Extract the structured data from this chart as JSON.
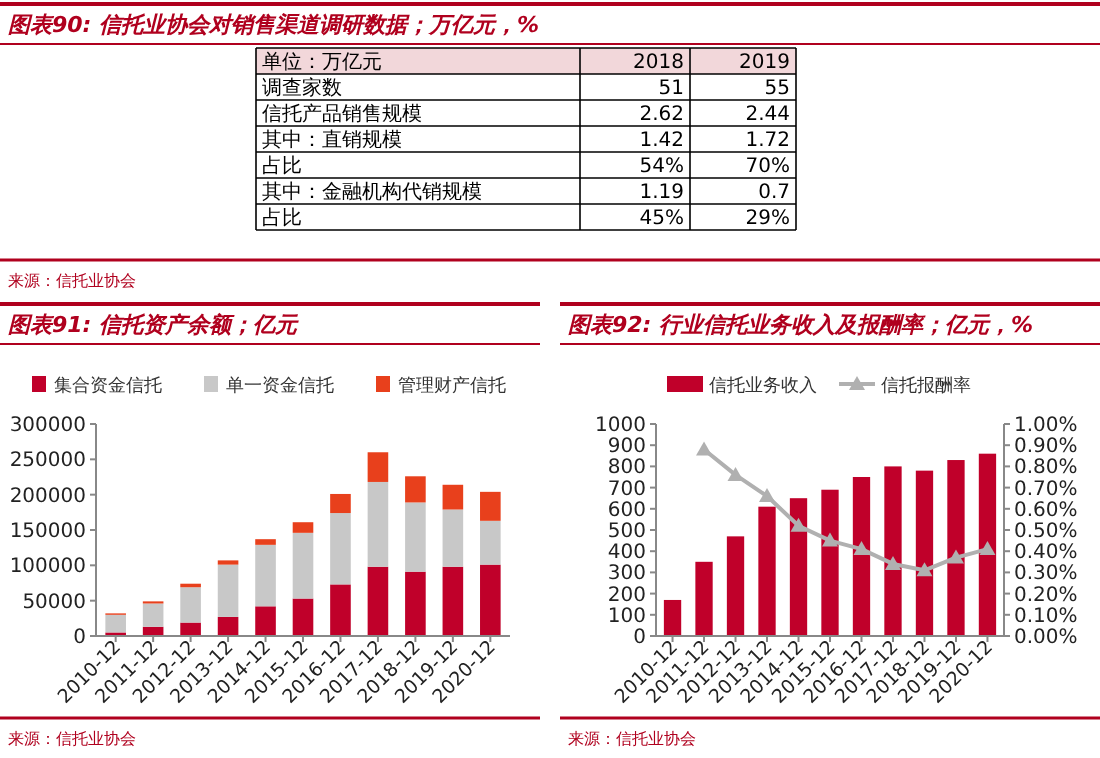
{
  "chart_data": [
    {
      "type": "other",
      "title": "图表90: 信托业协会对销售渠道调研数据；万亿元，%",
      "ylabel": "单位：万亿元",
      "categories": [
        "2018",
        "2019"
      ],
      "y_categories": [
        "调查家数",
        "信托产品销售规模",
        "其中：直销规模",
        "占比",
        "其中：金融机构代销规模",
        "占比"
      ],
      "cell_labels": [
        [
          "51",
          "55"
        ],
        [
          "2.62",
          "2.44"
        ],
        [
          "1.42",
          "1.72"
        ],
        [
          "54%",
          "70%"
        ],
        [
          "1.19",
          "0.7"
        ],
        [
          "45%",
          "29%"
        ]
      ],
      "annotations": [
        "来源：信托业协会"
      ]
    },
    {
      "type": "bar",
      "stacked": true,
      "title": "图表91: 信托资产余额；亿元",
      "legend": "top",
      "categories": [
        "2010-12",
        "2011-12",
        "2012-12",
        "2013-12",
        "2014-12",
        "2015-12",
        "2016-12",
        "2017-12",
        "2018-12",
        "2019-12",
        "2020-12"
      ],
      "ylim": [
        0,
        300000
      ],
      "yticks": [
        0,
        50000,
        100000,
        150000,
        200000,
        250000,
        300000
      ],
      "series": [
        {
          "name": "集合资金信托",
          "color": "#c0002a",
          "values": [
            5000,
            13000,
            19000,
            27000,
            42000,
            53000,
            73000,
            98000,
            91000,
            98000,
            101000
          ]
        },
        {
          "name": "单一资金信托",
          "color": "#c8c8c8",
          "values": [
            25000,
            33000,
            50000,
            74000,
            87000,
            93000,
            101000,
            120000,
            98000,
            81000,
            62000
          ]
        },
        {
          "name": "管理财产信托",
          "color": "#e8401c",
          "values": [
            2000,
            3000,
            5000,
            6000,
            8000,
            15000,
            27000,
            42000,
            37000,
            35000,
            41000
          ]
        }
      ],
      "annotations": [
        "来源：信托业协会"
      ]
    },
    {
      "type": "bar",
      "title": "图表92: 行业信托业务收入及报酬率；亿元，%",
      "legend": "top",
      "categories": [
        "2010-12",
        "2011-12",
        "2012-12",
        "2013-12",
        "2014-12",
        "2015-12",
        "2016-12",
        "2017-12",
        "2018-12",
        "2019-12",
        "2020-12"
      ],
      "ylim": [
        0,
        1000
      ],
      "yticks": [
        0,
        100,
        200,
        300,
        400,
        500,
        600,
        700,
        800,
        900,
        1000
      ],
      "y2lim": [
        0,
        1
      ],
      "y2ticks": [
        {
          "value": 0,
          "label": "0.00%"
        },
        {
          "value": 0.1,
          "label": "0.10%"
        },
        {
          "value": 0.2,
          "label": "0.20%"
        },
        {
          "value": 0.3,
          "label": "0.30%"
        },
        {
          "value": 0.4,
          "label": "0.40%"
        },
        {
          "value": 0.5,
          "label": "0.50%"
        },
        {
          "value": 0.6,
          "label": "0.60%"
        },
        {
          "value": 0.7,
          "label": "0.70%"
        },
        {
          "value": 0.8,
          "label": "0.80%"
        },
        {
          "value": 0.9,
          "label": "0.90%"
        },
        {
          "value": 1,
          "label": "1.00%"
        }
      ],
      "series": [
        {
          "name": "信托业务收入",
          "color": "#c0002a",
          "values": [
            170,
            350,
            470,
            610,
            650,
            690,
            750,
            800,
            780,
            830,
            860
          ]
        },
        {
          "name": "信托报酬率",
          "type": "line",
          "axis": "y2",
          "marker": "triangle",
          "color": "#b0b0b0",
          "values": [
            null,
            0.88,
            0.76,
            0.66,
            0.52,
            0.45,
            0.41,
            0.34,
            0.31,
            0.37,
            0.41
          ]
        }
      ],
      "annotations": [
        "来源：信托业协会"
      ]
    }
  ]
}
